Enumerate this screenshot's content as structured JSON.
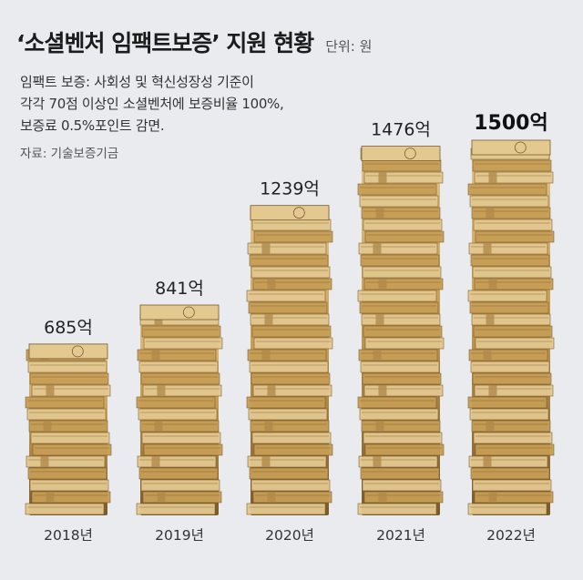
{
  "title": "‘소셜벤처 임팩트보증’ 지원 현황",
  "unit_label": "단위: 원",
  "subtitle_lines": [
    "임팩트 보증: 사회성 및 혁신성장성 기준이",
    "각각 70점 이상인 소셜벤처에 보증비율 100%,",
    "보증료 0.5%포인트 감면."
  ],
  "source": "자료: 기술보증기금",
  "chart_data": {
    "type": "bar",
    "title": "‘소셜벤처 임팩트보증’ 지원 현황",
    "categories": [
      "2018년",
      "2019년",
      "2020년",
      "2021년",
      "2022년"
    ],
    "values": [
      685,
      841,
      1239,
      1476,
      1500
    ],
    "value_labels": [
      "685억",
      "841억",
      "1239억",
      "1476억",
      "1500억"
    ],
    "ylim": [
      0,
      1500
    ],
    "highlight_index": 4,
    "bar_style": "stacked money bundles",
    "colors": {
      "bundle_base": "#c79e55",
      "bundle_light": "#e3c88f",
      "bundle_dark": "#7a5a2a",
      "band": "#b0894a"
    }
  }
}
